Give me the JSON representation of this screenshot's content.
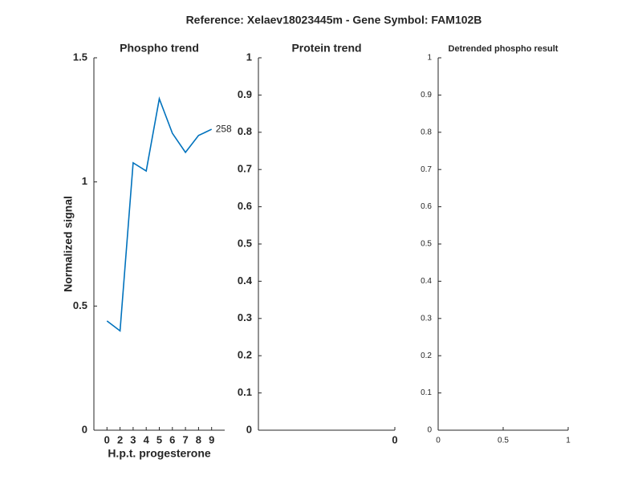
{
  "title": "Reference:  Xelaev18023445m - Gene Symbol:  FAM102B",
  "chart_data": [
    {
      "type": "line",
      "title": "Phospho trend",
      "xlabel": "H.p.t. progesterone",
      "ylabel": "Normalized signal",
      "categories": [
        "0",
        "2",
        "3",
        "4",
        "5",
        "6",
        "7",
        "8",
        "9"
      ],
      "series": [
        {
          "color": "#0072bd",
          "values": [
            0.44,
            0.4,
            1.077,
            1.044,
            1.335,
            1.196,
            1.119,
            1.187,
            1.212
          ]
        }
      ],
      "annotation": "258",
      "ylim": [
        0,
        1.5
      ],
      "yticks": [
        0,
        0.5,
        1,
        1.5
      ]
    },
    {
      "type": "line",
      "title": "Protein trend",
      "xlim": [
        -1,
        0
      ],
      "xticks": [
        0
      ],
      "ylim": [
        0,
        1
      ],
      "yticks": [
        0,
        0.1,
        0.2,
        0.3,
        0.4,
        0.5,
        0.6,
        0.7,
        0.8,
        0.9,
        1
      ]
    },
    {
      "type": "line",
      "title": "Detrended phospho result",
      "xlim": [
        0,
        1
      ],
      "xticks": [
        0,
        0.5,
        1
      ],
      "ylim": [
        0,
        1
      ],
      "yticks": [
        0,
        0.1,
        0.2,
        0.3,
        0.4,
        0.5,
        0.6,
        0.7,
        0.8,
        0.9,
        1
      ]
    }
  ]
}
